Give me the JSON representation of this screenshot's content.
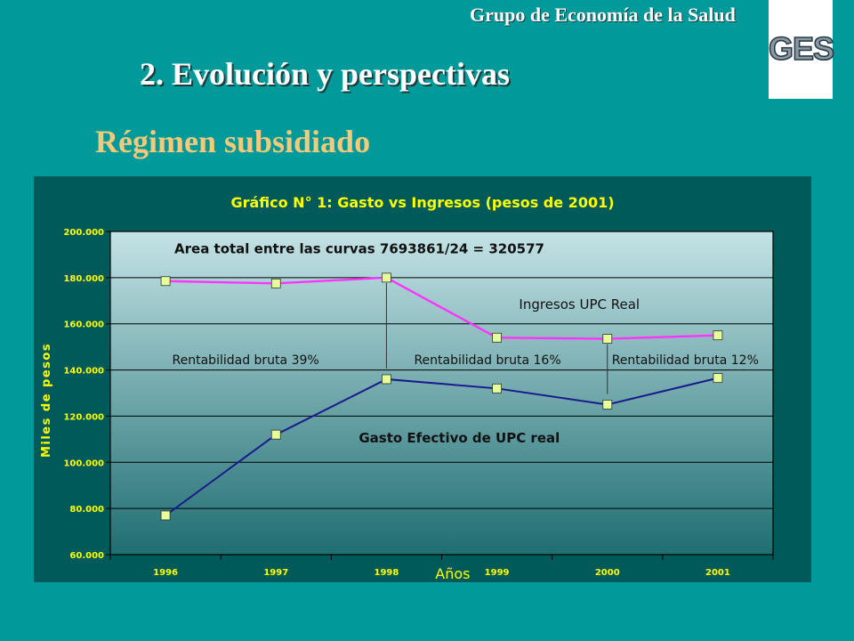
{
  "header": {
    "org_name": "Grupo de Economía de la Salud",
    "logo_text": "GES",
    "title": "2. Evolución y perspectivas",
    "subtitle": "Régimen subsidiado"
  },
  "colors": {
    "background": "#009a9a",
    "chart_panel": "#005a5a",
    "ingresos_line": "#ff33ff",
    "gasto_line": "#1a1a8c",
    "marker_fill": "#e6ff99",
    "chart_text_yellow": "#ffff00",
    "subtitle_color": "#f4c97a"
  },
  "chart_data": {
    "type": "line",
    "title": "Gráfico N° 1: Gasto vs Ingresos (pesos de 2001)",
    "xlabel": "Años",
    "ylabel": "Miles de pesos",
    "categories": [
      "1996",
      "1997",
      "1998",
      "1999",
      "2000",
      "2001"
    ],
    "yticks": [
      "60.000",
      "80.000",
      "100.000",
      "120.000",
      "140.000",
      "160.000",
      "180.000",
      "200.000"
    ],
    "ylim": [
      60000,
      200000
    ],
    "grid": true,
    "series": [
      {
        "name": "Ingresos UPC Real",
        "values": [
          178500,
          177500,
          180000,
          154000,
          153500,
          155000
        ]
      },
      {
        "name": "Gasto Efectivo de UPC real",
        "values": [
          77000,
          112000,
          136000,
          132000,
          125000,
          136500
        ]
      }
    ],
    "annotations": [
      "Area  total entre las curvas 7693861/24 = 320577",
      "Rentabilidad bruta  39%",
      "Rentabilidad bruta  16%",
      "Rentabilidad bruta  12%"
    ]
  }
}
